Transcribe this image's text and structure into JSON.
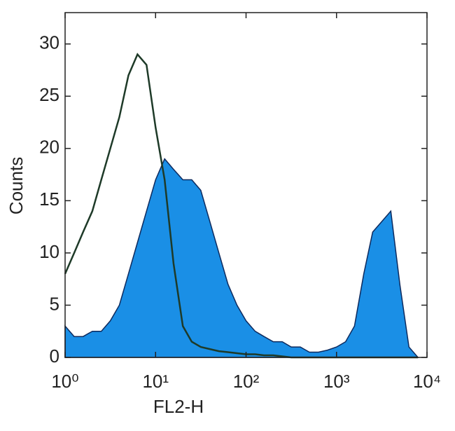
{
  "chart_data": {
    "type": "area",
    "x_label": "FL2-H",
    "y_label": "Counts",
    "xscale": "log",
    "xlim": [
      1,
      10000
    ],
    "ylim": [
      0,
      33
    ],
    "xticks": [
      {
        "value": 1,
        "label": "10⁰"
      },
      {
        "value": 10,
        "label": "10¹"
      },
      {
        "value": 100,
        "label": "10²"
      },
      {
        "value": 1000,
        "label": "10³"
      },
      {
        "value": 10000,
        "label": "10⁴"
      }
    ],
    "yticks": [
      0,
      5,
      10,
      15,
      20,
      25,
      30
    ],
    "x": [
      1,
      1.26,
      1.58,
      2,
      2.51,
      3.16,
      3.98,
      5.01,
      6.31,
      7.94,
      10,
      12.6,
      15.8,
      20,
      25.1,
      31.6,
      39.8,
      50.1,
      63.1,
      79.4,
      100,
      126,
      158,
      200,
      251,
      316,
      398,
      501,
      631,
      794,
      1000,
      1260,
      1580,
      2000,
      2510,
      3160,
      3980,
      5010,
      6310,
      7940
    ],
    "series": [
      {
        "color": "#1a8fe6",
        "stroke": "#0d2a5e",
        "fill": true,
        "values": [
          3,
          2,
          2,
          2.5,
          2.5,
          3.5,
          5,
          8,
          11,
          14,
          17,
          19,
          18,
          17,
          17,
          16,
          13,
          10,
          7,
          5,
          3.5,
          2.5,
          2,
          1.5,
          1.5,
          1,
          1,
          0.5,
          0.5,
          0.7,
          1,
          1.5,
          3,
          8,
          12,
          13,
          14,
          7,
          1,
          0
        ]
      },
      {
        "color": "#1e3a28",
        "fill": false,
        "values": [
          8,
          10,
          12,
          14,
          17,
          20,
          23,
          27,
          29,
          28,
          22,
          17,
          9,
          3,
          1.5,
          1,
          0.8,
          0.6,
          0.5,
          0.4,
          0.3,
          0.3,
          0.2,
          0.2,
          0.1,
          0,
          0,
          0,
          0,
          0,
          0,
          0,
          0,
          0,
          0,
          0,
          0,
          0,
          0,
          0
        ]
      }
    ]
  }
}
